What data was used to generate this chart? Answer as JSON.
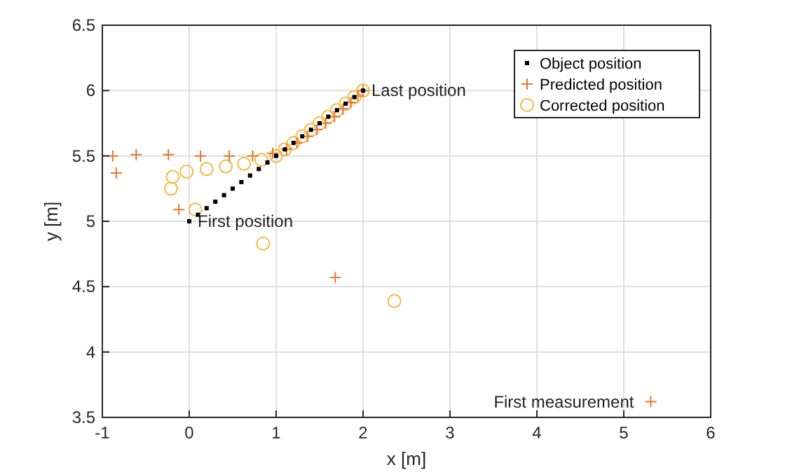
{
  "chart_data": {
    "type": "scatter",
    "xlabel": "x [m]",
    "ylabel": "y [m]",
    "xlim": [
      -1,
      6
    ],
    "ylim": [
      3.5,
      6.5
    ],
    "xticks": [
      -1,
      0,
      1,
      2,
      3,
      4,
      5,
      6
    ],
    "yticks": [
      3.5,
      4,
      4.5,
      5,
      5.5,
      6,
      6.5
    ],
    "grid": true,
    "legend": "top right",
    "series": [
      {
        "name": "Object position",
        "color": "#000000",
        "marker": "square",
        "x": [
          0,
          0.1,
          0.2,
          0.3,
          0.4,
          0.5,
          0.6,
          0.7,
          0.8,
          0.9,
          1,
          1.1,
          1.2,
          1.3,
          1.4,
          1.5,
          1.6,
          1.7,
          1.8,
          1.9,
          2
        ],
        "values": [
          5,
          5.05,
          5.1,
          5.15,
          5.2,
          5.25,
          5.3,
          5.35,
          5.4,
          5.45,
          5.5,
          5.55,
          5.6,
          5.65,
          5.7,
          5.75,
          5.8,
          5.85,
          5.9,
          5.95,
          6
        ]
      },
      {
        "name": "Predicted position",
        "color": "#e8772e",
        "marker": "cross",
        "x": [
          5.31,
          -0.88,
          -0.84,
          -0.61,
          -0.24,
          -0.12,
          0.13,
          0.46,
          0.73,
          0.96,
          1.68,
          1.12,
          1.24,
          1.36,
          1.47,
          1.57,
          1.67,
          1.77,
          1.86,
          1.94,
          2
        ],
        "values": [
          3.62,
          5.5,
          5.37,
          5.51,
          5.51,
          5.09,
          5.5,
          5.5,
          5.5,
          5.52,
          4.57,
          5.55,
          5.6,
          5.65,
          5.7,
          5.75,
          5.8,
          5.86,
          5.91,
          5.96,
          6
        ]
      },
      {
        "name": "Corrected position",
        "color": "#f5b942",
        "marker": "circle",
        "x": [
          -0.19,
          -0.21,
          -0.03,
          0.07,
          0.2,
          0.42,
          0.63,
          0.83,
          1,
          0.85,
          2.36,
          1.1,
          1.2,
          1.3,
          1.4,
          1.5,
          1.6,
          1.7,
          1.8,
          1.9,
          2
        ],
        "values": [
          5.34,
          5.25,
          5.38,
          5.09,
          5.4,
          5.42,
          5.44,
          5.47,
          5.5,
          4.83,
          4.39,
          5.55,
          5.6,
          5.65,
          5.7,
          5.75,
          5.8,
          5.85,
          5.9,
          5.95,
          6
        ]
      }
    ],
    "annotations": [
      {
        "text": "First position",
        "x": 0,
        "y": 5
      },
      {
        "text": "Last position",
        "x": 2,
        "y": 6
      },
      {
        "text": "First measurement",
        "x": 5.31,
        "y": 3.62
      }
    ]
  }
}
